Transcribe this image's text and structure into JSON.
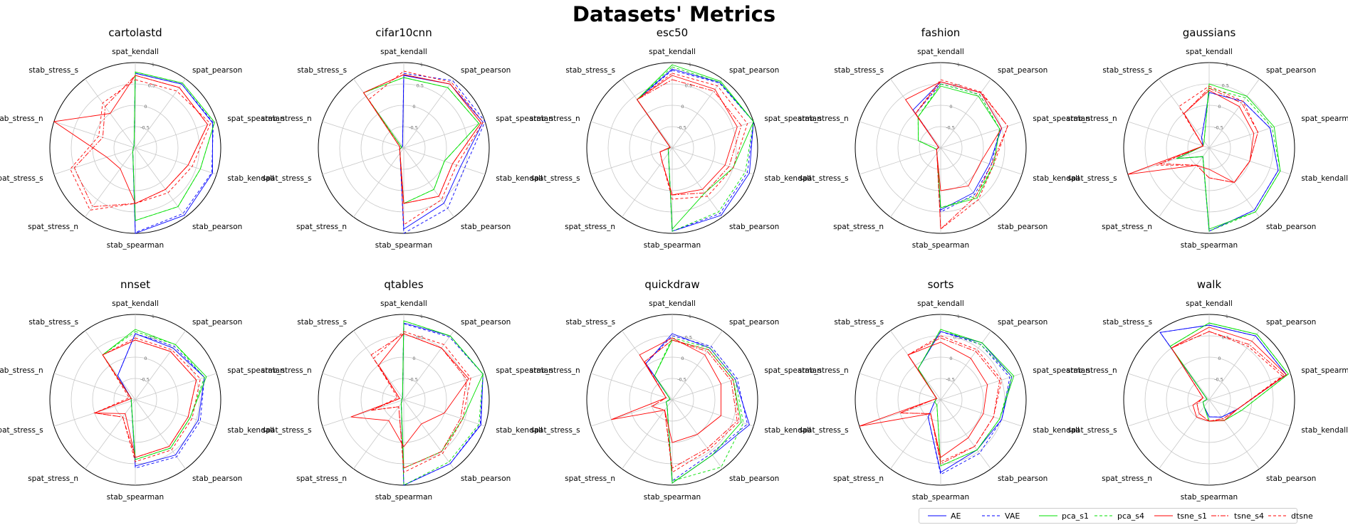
{
  "title": "Datasets' Metrics",
  "chart_data": {
    "type": "radar",
    "axes": [
      "spat_kendall",
      "spat_pearson",
      "spat_spearman",
      "stab_kendall",
      "stab_pearson",
      "stab_spearman",
      "spat_stress_n",
      "spat_stress_s",
      "stab_stress_n",
      "stab_stress_s"
    ],
    "rlim": [
      -1,
      1
    ],
    "rticks": [
      "-1",
      "-0.5",
      "0",
      "0.5",
      "1"
    ],
    "series": [
      {
        "name": "AE",
        "color": "#0000ff",
        "dash": ""
      },
      {
        "name": "VAE",
        "color": "#0000ff",
        "dash": "4,3"
      },
      {
        "name": "pca_s1",
        "color": "#00e000",
        "dash": ""
      },
      {
        "name": "pca_s4",
        "color": "#00e000",
        "dash": "4,3"
      },
      {
        "name": "tsne_s1",
        "color": "#ff0000",
        "dash": ""
      },
      {
        "name": "tsne_s4",
        "color": "#ff0000",
        "dash": "7,2,2,2"
      },
      {
        "name": "dtsne",
        "color": "#ff0000",
        "dash": "4,3"
      }
    ],
    "charts": [
      {
        "title": "cartolastd",
        "values": {
          "AE": [
            0.75,
            0.85,
            0.9,
            0.9,
            0.95,
            1.0,
            -0.9,
            -0.95,
            -0.95,
            -0.95
          ],
          "VAE": [
            0.75,
            0.85,
            0.92,
            0.88,
            0.9,
            0.98,
            -0.9,
            -0.95,
            -0.95,
            -0.95
          ],
          "pca_s1": [
            0.78,
            0.88,
            0.95,
            0.6,
            0.7,
            0.7,
            -0.9,
            -0.95,
            -0.95,
            -0.95
          ],
          "pca_s4": [
            0.78,
            0.88,
            0.95,
            0.6,
            0.7,
            0.7,
            -0.9,
            -0.95,
            -0.95,
            -0.95
          ],
          "tsne_s1": [
            0.7,
            0.75,
            0.78,
            0.3,
            0.2,
            0.3,
            -0.4,
            -0.3,
            1.0,
            0.0
          ],
          "tsne_s4": [
            0.7,
            0.75,
            0.78,
            0.3,
            0.2,
            0.3,
            0.7,
            0.5,
            -0.2,
            0.2
          ],
          "dtsne": [
            0.6,
            0.65,
            0.85,
            0.4,
            0.3,
            0.3,
            0.8,
            0.6,
            -0.1,
            0.3
          ]
        }
      },
      {
        "title": "cifar10cnn",
        "values": {
          "AE": [
            0.7,
            0.85,
            0.95,
            0.4,
            0.6,
            0.9,
            -0.85,
            -0.9,
            -0.95,
            -0.95
          ],
          "VAE": [
            0.75,
            0.95,
            1.0,
            0.5,
            0.75,
            1.0,
            -0.85,
            -0.9,
            -0.95,
            -0.95
          ],
          "pca_s1": [
            0.65,
            0.75,
            0.85,
            0.0,
            0.2,
            0.3,
            -0.85,
            -0.9,
            -0.95,
            0.6
          ],
          "pca_s4": [
            0.65,
            0.75,
            0.85,
            0.0,
            0.2,
            0.3,
            -0.85,
            -0.9,
            -0.95,
            0.6
          ],
          "tsne_s1": [
            0.72,
            0.85,
            0.9,
            0.2,
            0.4,
            0.3,
            -0.85,
            -0.9,
            -0.9,
            0.6
          ],
          "tsne_s4": [
            0.72,
            0.85,
            0.9,
            0.2,
            0.4,
            0.3,
            -0.85,
            -0.9,
            -0.9,
            0.6
          ],
          "dtsne": [
            0.8,
            0.9,
            0.95,
            0.3,
            0.5,
            0.8,
            -0.85,
            -0.9,
            -0.9,
            0.4
          ]
        }
      },
      {
        "title": "esc50",
        "values": {
          "AE": [
            0.85,
            0.9,
            1.0,
            0.9,
            0.95,
            0.95,
            -0.85,
            -0.9,
            -0.95,
            0.4
          ],
          "VAE": [
            0.82,
            0.88,
            1.0,
            0.85,
            0.9,
            0.95,
            -0.85,
            -0.9,
            -0.95,
            0.4
          ],
          "pca_s1": [
            0.95,
            0.93,
            1.0,
            0.5,
            0.3,
            0.9,
            -0.85,
            -0.9,
            -0.95,
            0.4
          ],
          "pca_s4": [
            0.9,
            0.9,
            1.0,
            0.8,
            0.85,
            0.95,
            -0.85,
            -0.9,
            -0.95,
            0.4
          ],
          "tsne_s1": [
            0.7,
            0.7,
            0.6,
            0.3,
            0.2,
            0.1,
            -0.6,
            -0.7,
            -0.95,
            0.4
          ],
          "tsne_s4": [
            0.6,
            0.65,
            0.7,
            0.4,
            0.3,
            0.1,
            -0.6,
            -0.7,
            -0.95,
            0.4
          ],
          "dtsne": [
            0.75,
            0.8,
            0.85,
            0.5,
            0.4,
            0.2,
            -0.6,
            -0.7,
            -0.95,
            0.4
          ]
        }
      },
      {
        "title": "fashion",
        "values": {
          "AE": [
            0.55,
            0.6,
            0.5,
            0.2,
            0.3,
            0.45,
            -0.85,
            -0.9,
            -0.95,
            0.1
          ],
          "VAE": [
            0.5,
            0.55,
            0.45,
            0.25,
            0.35,
            0.5,
            -0.85,
            -0.9,
            -0.95,
            0.0
          ],
          "pca_s1": [
            0.45,
            0.5,
            0.45,
            0.3,
            0.45,
            0.4,
            -0.85,
            -0.9,
            -0.45,
            -0.1
          ],
          "pca_s4": [
            0.5,
            0.55,
            0.45,
            0.3,
            0.4,
            0.4,
            -0.85,
            -0.9,
            -0.45,
            -0.1
          ],
          "tsne_s1": [
            0.55,
            0.6,
            0.5,
            0.0,
            0.1,
            0.0,
            -0.85,
            -0.9,
            -0.95,
            0.4
          ],
          "tsne_s4": [
            0.55,
            0.6,
            0.65,
            0.25,
            0.4,
            0.9,
            -0.85,
            -0.9,
            -0.95,
            0.0
          ],
          "dtsne": [
            0.6,
            0.62,
            0.65,
            0.3,
            0.5,
            0.9,
            -0.85,
            -0.9,
            -0.95,
            0.0
          ]
        }
      },
      {
        "title": "gaussians",
        "values": {
          "AE": [
            0.3,
            0.35,
            0.5,
            0.7,
            0.8,
            0.95,
            -0.75,
            -0.2,
            -0.85,
            -0.7
          ],
          "VAE": [
            0.3,
            0.35,
            0.5,
            0.7,
            0.8,
            0.95,
            -0.75,
            -0.2,
            -0.85,
            -0.7
          ],
          "pca_s1": [
            0.5,
            0.5,
            0.6,
            0.75,
            0.85,
            0.9,
            -0.75,
            -0.2,
            -0.85,
            -0.8
          ],
          "pca_s4": [
            0.4,
            0.45,
            0.55,
            0.75,
            0.85,
            0.95,
            -0.75,
            -0.2,
            -0.85,
            -0.8
          ],
          "tsne_s1": [
            0.35,
            0.2,
            0.1,
            0.0,
            0.0,
            -0.5,
            -0.5,
            1.0,
            -0.85,
            0.0
          ],
          "tsne_s4": [
            0.4,
            0.3,
            0.2,
            0.0,
            0.0,
            -0.3,
            -0.5,
            0.2,
            -0.85,
            0.0
          ],
          "dtsne": [
            0.45,
            0.35,
            0.2,
            0.0,
            0.0,
            -0.3,
            -0.5,
            0.3,
            -0.85,
            0.2
          ]
        }
      },
      {
        "title": "nnset",
        "values": {
          "AE": [
            0.55,
            0.5,
            0.7,
            0.55,
            0.6,
            0.55,
            -0.85,
            -0.9,
            -0.9,
            -0.3
          ],
          "VAE": [
            0.55,
            0.55,
            0.7,
            0.6,
            0.65,
            0.6,
            -0.85,
            -0.9,
            -0.9,
            -0.3
          ],
          "pca_s1": [
            0.65,
            0.6,
            0.75,
            0.35,
            0.4,
            0.4,
            -0.85,
            -0.9,
            -0.9,
            0.3
          ],
          "pca_s4": [
            0.6,
            0.6,
            0.7,
            0.35,
            0.4,
            0.4,
            -0.85,
            -0.9,
            -0.9,
            0.3
          ],
          "tsne_s1": [
            0.4,
            0.4,
            0.5,
            0.3,
            0.35,
            0.35,
            -0.6,
            0.0,
            -0.9,
            0.3
          ],
          "tsne_s4": [
            0.4,
            0.4,
            0.5,
            0.3,
            0.35,
            0.35,
            -0.5,
            0.0,
            -0.9,
            0.3
          ],
          "dtsne": [
            0.45,
            0.45,
            0.6,
            0.4,
            0.45,
            0.45,
            -0.5,
            0.0,
            -0.85,
            0.3
          ]
        }
      },
      {
        "title": "qtables",
        "values": {
          "AE": [
            0.8,
            0.85,
            0.95,
            0.9,
            0.85,
            1.0,
            -0.9,
            -0.95,
            -0.95,
            -0.95
          ],
          "VAE": [
            0.78,
            0.82,
            0.95,
            0.88,
            0.85,
            1.0,
            -0.9,
            -0.95,
            -0.95,
            -0.95
          ],
          "pca_s1": [
            0.85,
            0.85,
            0.95,
            0.45,
            0.5,
            0.6,
            -0.9,
            -0.95,
            -0.95,
            -0.95
          ],
          "pca_s4": [
            0.85,
            0.85,
            0.95,
            0.85,
            0.8,
            1.0,
            -0.9,
            -0.95,
            -0.95,
            -0.95
          ],
          "tsne_s1": [
            0.55,
            0.5,
            0.6,
            0.0,
            -0.3,
            0.1,
            -0.4,
            0.3,
            -0.9,
            0.0
          ],
          "tsne_s4": [
            0.55,
            0.5,
            0.55,
            0.4,
            0.5,
            0.6,
            -0.8,
            -0.2,
            -0.9,
            0.3
          ],
          "dtsne": [
            0.6,
            0.6,
            0.65,
            0.45,
            0.55,
            0.7,
            -0.8,
            -0.2,
            -0.85,
            0.2
          ]
        }
      },
      {
        "title": "quickdraw",
        "values": {
          "AE": [
            0.55,
            0.5,
            0.55,
            0.9,
            0.6,
            0.95,
            -0.8,
            -0.85,
            -0.95,
            0.05
          ],
          "VAE": [
            0.5,
            0.55,
            0.6,
            0.85,
            0.55,
            0.9,
            -0.8,
            -0.85,
            -0.95,
            0.05
          ],
          "pca_s1": [
            0.4,
            0.45,
            0.5,
            0.7,
            0.6,
            0.95,
            -0.8,
            -0.85,
            -0.95,
            -0.3
          ],
          "pca_s4": [
            0.45,
            0.5,
            0.55,
            0.75,
            0.95,
            0.9,
            -0.8,
            -0.85,
            -0.95,
            -0.3
          ],
          "tsne_s1": [
            0.45,
            0.3,
            0.2,
            0.2,
            0.0,
            0.0,
            -0.7,
            0.5,
            -0.85,
            0.3
          ],
          "tsne_s4": [
            0.4,
            0.4,
            0.45,
            0.6,
            0.4,
            0.6,
            -0.7,
            -0.5,
            -0.85,
            0.1
          ],
          "dtsne": [
            0.4,
            0.45,
            0.5,
            0.65,
            0.45,
            0.7,
            -0.7,
            -0.5,
            -0.85,
            0.1
          ]
        }
      },
      {
        "title": "sorts",
        "values": {
          "AE": [
            0.6,
            0.65,
            0.75,
            0.5,
            0.45,
            0.7,
            -0.5,
            -0.85,
            -0.9,
            -0.1
          ],
          "VAE": [
            0.6,
            0.6,
            0.7,
            0.5,
            0.55,
            0.75,
            -0.5,
            -0.85,
            -0.9,
            -0.1
          ],
          "pca_s1": [
            0.65,
            0.65,
            0.8,
            0.45,
            0.45,
            0.55,
            -0.85,
            -0.85,
            -0.9,
            -0.1
          ],
          "pca_s4": [
            0.65,
            0.6,
            0.75,
            0.45,
            0.45,
            0.55,
            -0.85,
            -0.85,
            -0.9,
            -0.1
          ],
          "tsne_s1": [
            0.35,
            0.2,
            0.15,
            0.05,
            0.1,
            0.35,
            -0.6,
            1.0,
            -0.9,
            0.3
          ],
          "tsne_s4": [
            0.45,
            0.4,
            0.45,
            0.3,
            0.35,
            0.5,
            -0.6,
            0.0,
            -0.9,
            0.3
          ],
          "dtsne": [
            0.5,
            0.45,
            0.5,
            0.3,
            0.35,
            0.45,
            -0.6,
            0.0,
            -0.9,
            0.3
          ]
        }
      },
      {
        "title": "walk",
        "values": {
          "AE": [
            0.75,
            0.85,
            0.9,
            -0.3,
            -0.5,
            -0.6,
            -0.8,
            -0.85,
            -0.95,
            0.95
          ],
          "VAE": [
            0.75,
            0.85,
            0.9,
            -0.3,
            -0.5,
            -0.6,
            -0.8,
            -0.85,
            -0.95,
            0.95
          ],
          "pca_s1": [
            0.8,
            0.9,
            0.95,
            -0.2,
            -0.4,
            -0.5,
            -0.8,
            -0.85,
            -0.95,
            0.55
          ],
          "pca_s4": [
            0.8,
            0.9,
            0.95,
            -0.2,
            -0.4,
            -0.5,
            -0.8,
            -0.85,
            -0.95,
            0.55
          ],
          "tsne_s1": [
            0.7,
            0.7,
            0.9,
            -0.3,
            -0.4,
            -0.5,
            -0.5,
            -0.6,
            -0.85,
            0.5
          ],
          "tsne_s4": [
            0.6,
            0.6,
            0.85,
            -0.3,
            -0.45,
            -0.5,
            -0.6,
            -0.7,
            -0.85,
            0.5
          ],
          "dtsne": [
            0.6,
            0.55,
            0.8,
            -0.3,
            -0.45,
            -0.5,
            -0.6,
            -0.7,
            -0.85,
            0.5
          ]
        }
      }
    ]
  }
}
